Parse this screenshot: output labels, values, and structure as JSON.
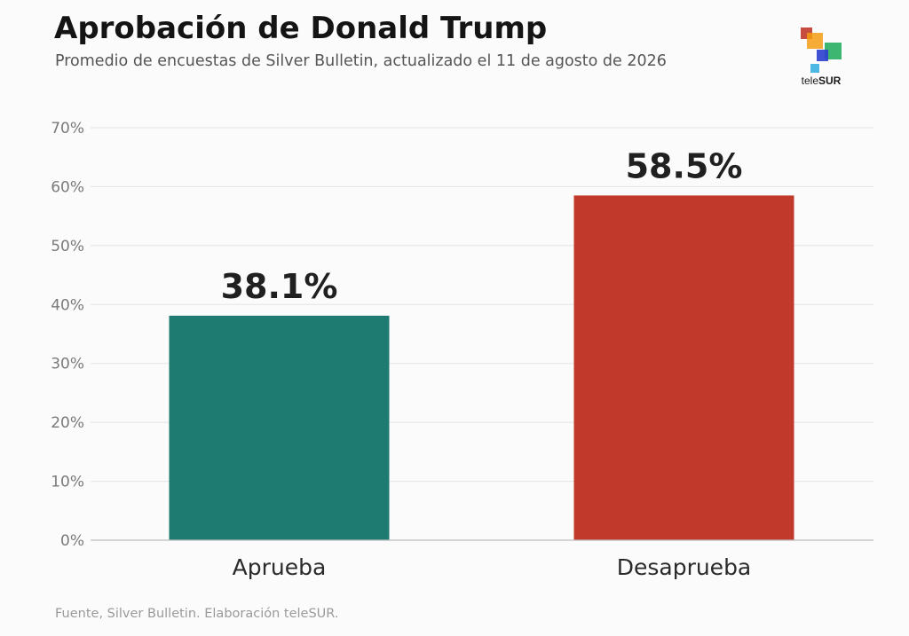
{
  "chart_data": {
    "type": "bar",
    "title": "Aprobación de Donald Trump",
    "subtitle": "Promedio de encuestas de Silver Bulletin, actualizado el 11 de agosto de 2026",
    "categories": [
      "Aprueba",
      "Desaprueba"
    ],
    "values": [
      38.1,
      58.5
    ],
    "data_labels": [
      "38.1%",
      "58.5%"
    ],
    "colors": [
      "#1e7b72",
      "#c0392b"
    ],
    "ylim": [
      0,
      70
    ],
    "yticks": [
      0,
      10,
      20,
      30,
      40,
      50,
      60,
      70
    ],
    "ytick_labels": [
      "0%",
      "10%",
      "20%",
      "30%",
      "40%",
      "50%",
      "60%",
      "70%"
    ],
    "grid": true,
    "source": "Fuente, Silver Bulletin. Elaboración teleSUR."
  },
  "logo": {
    "prefix": "tele",
    "suffix": "SUR"
  }
}
